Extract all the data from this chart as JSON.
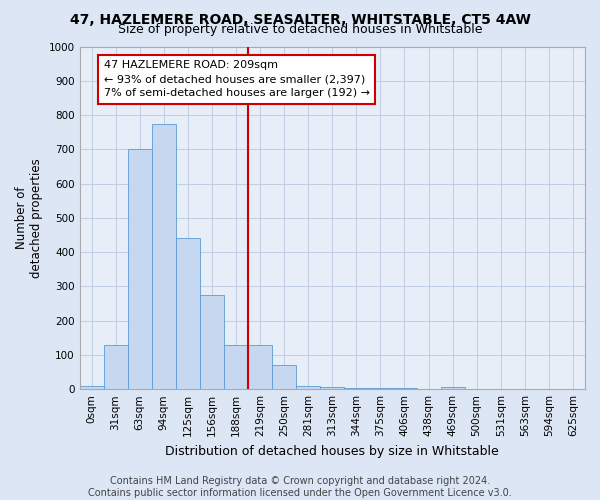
{
  "title": "47, HAZLEMERE ROAD, SEASALTER, WHITSTABLE, CT5 4AW",
  "subtitle": "Size of property relative to detached houses in Whitstable",
  "xlabel": "Distribution of detached houses by size in Whitstable",
  "ylabel": "Number of\ndetached properties",
  "footer_line1": "Contains HM Land Registry data © Crown copyright and database right 2024.",
  "footer_line2": "Contains public sector information licensed under the Open Government Licence v3.0.",
  "annotation_line1": "47 HAZLEMERE ROAD: 209sqm",
  "annotation_line2": "← 93% of detached houses are smaller (2,397)",
  "annotation_line3": "7% of semi-detached houses are larger (192) →",
  "bar_values": [
    10,
    130,
    700,
    775,
    440,
    275,
    130,
    130,
    70,
    10,
    5,
    2,
    2,
    2,
    0,
    5,
    0,
    0,
    0,
    0,
    0
  ],
  "bar_labels": [
    "0sqm",
    "31sqm",
    "63sqm",
    "94sqm",
    "125sqm",
    "156sqm",
    "188sqm",
    "219sqm",
    "250sqm",
    "281sqm",
    "313sqm",
    "344sqm",
    "375sqm",
    "406sqm",
    "438sqm",
    "469sqm",
    "500sqm",
    "531sqm",
    "563sqm",
    "594sqm",
    "625sqm"
  ],
  "bar_color": "#c5d8f0",
  "bar_edgecolor": "#5b9bd5",
  "vline_index": 7,
  "vline_color": "#cc0000",
  "ylim": [
    0,
    1000
  ],
  "yticks": [
    0,
    100,
    200,
    300,
    400,
    500,
    600,
    700,
    800,
    900,
    1000
  ],
  "background_color": "#dce6f5",
  "plot_bg_color": "#e8eef8",
  "grid_color": "#b8c8e0",
  "title_fontsize": 10,
  "subtitle_fontsize": 9,
  "axis_label_fontsize": 8.5,
  "tick_fontsize": 7.5,
  "annotation_fontsize": 8,
  "footer_fontsize": 7
}
